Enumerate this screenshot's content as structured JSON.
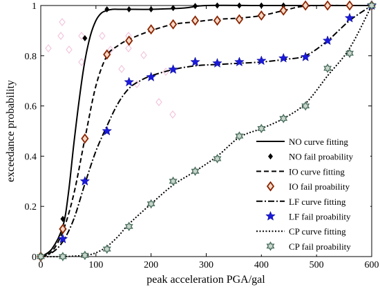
{
  "chart_data": {
    "type": "line",
    "xlabel": "peak acceleration PGA/gal",
    "ylabel": "exceedance probability",
    "xlim": [
      0,
      600
    ],
    "ylim": [
      0,
      1
    ],
    "x_ticks": [
      0,
      100,
      200,
      300,
      400,
      500,
      600
    ],
    "y_ticks": [
      0,
      0.2,
      0.4,
      0.6,
      0.8,
      1
    ],
    "x_tick_labels": [
      "0",
      "100",
      "200",
      "300",
      "400",
      "500",
      "600"
    ],
    "y_tick_labels": [
      "0",
      "0.2",
      "0.4",
      "0.6",
      "0.8",
      "1"
    ],
    "grid": false,
    "legend_position": "bottom-right",
    "series": [
      {
        "key": "NO",
        "curve_name": "NO curve fitting",
        "points_name": "NO fail proability",
        "curve_style": "solid",
        "marker": "filled-diamond",
        "marker_color": "#000000",
        "curve": {
          "x": [
            0,
            20,
            40,
            50,
            60,
            70,
            80,
            90,
            100,
            110,
            120,
            130,
            140,
            160,
            200,
            260,
            300,
            400,
            500,
            600
          ],
          "y": [
            0,
            0.03,
            0.12,
            0.25,
            0.45,
            0.63,
            0.78,
            0.88,
            0.94,
            0.97,
            0.98,
            0.985,
            0.985,
            0.985,
            0.985,
            0.99,
            1,
            1,
            1,
            1
          ]
        },
        "points": {
          "x": [
            0,
            40,
            80,
            120,
            160,
            200,
            240,
            280,
            320,
            360,
            400,
            440,
            480,
            520,
            560,
            600
          ],
          "y": [
            0,
            0.15,
            0.87,
            0.985,
            0.985,
            0.985,
            0.99,
            0.998,
            1,
            1,
            1,
            1,
            1,
            1,
            1,
            1
          ]
        }
      },
      {
        "key": "IO",
        "curve_name": "IO curve fitting",
        "points_name": "IO fail proability",
        "curve_style": "dashed",
        "marker": "open-diamond",
        "marker_color": "#8b2500",
        "curve": {
          "x": [
            0,
            20,
            40,
            60,
            80,
            100,
            120,
            140,
            160,
            200,
            240,
            280,
            320,
            360,
            400,
            440,
            470,
            500,
            560,
            600
          ],
          "y": [
            0,
            0.02,
            0.1,
            0.25,
            0.47,
            0.68,
            0.8,
            0.84,
            0.865,
            0.9,
            0.925,
            0.935,
            0.945,
            0.95,
            0.96,
            0.98,
            0.995,
            1,
            1,
            1
          ]
        },
        "points": {
          "x": [
            0,
            40,
            80,
            120,
            160,
            200,
            240,
            280,
            320,
            360,
            400,
            440,
            480,
            520,
            560,
            600
          ],
          "y": [
            0,
            0.11,
            0.47,
            0.805,
            0.86,
            0.905,
            0.925,
            0.94,
            0.94,
            0.945,
            0.96,
            0.98,
            1,
            1,
            1,
            1
          ]
        }
      },
      {
        "key": "LF",
        "curve_name": "LF curve fitting",
        "points_name": "LF fail proability",
        "curve_style": "dash-dot",
        "marker": "star",
        "marker_color": "#1a1adc",
        "curve": {
          "x": [
            0,
            20,
            40,
            60,
            80,
            100,
            120,
            140,
            160,
            180,
            200,
            240,
            280,
            320,
            360,
            400,
            440,
            480,
            520,
            560,
            600
          ],
          "y": [
            0,
            0.015,
            0.06,
            0.15,
            0.29,
            0.42,
            0.52,
            0.61,
            0.67,
            0.7,
            0.72,
            0.745,
            0.76,
            0.765,
            0.77,
            0.775,
            0.785,
            0.8,
            0.86,
            0.94,
            1
          ]
        },
        "points": {
          "x": [
            40,
            80,
            120,
            160,
            200,
            240,
            280,
            320,
            360,
            400,
            440,
            480,
            520,
            560,
            600
          ],
          "y": [
            0.07,
            0.3,
            0.5,
            0.695,
            0.715,
            0.745,
            0.775,
            0.77,
            0.775,
            0.78,
            0.79,
            0.795,
            0.86,
            0.95,
            1
          ]
        }
      },
      {
        "key": "CP",
        "curve_name": "CP curve fitting",
        "points_name": "CP fail proability",
        "curve_style": "dotted",
        "marker": "hexagram",
        "marker_color": "#4a6e5e",
        "curve": {
          "x": [
            0,
            40,
            80,
            100,
            120,
            140,
            160,
            200,
            240,
            280,
            320,
            360,
            400,
            440,
            480,
            520,
            560,
            600
          ],
          "y": [
            0,
            0,
            0.005,
            0.015,
            0.04,
            0.08,
            0.13,
            0.21,
            0.285,
            0.34,
            0.4,
            0.475,
            0.51,
            0.55,
            0.61,
            0.72,
            0.83,
            1
          ]
        },
        "points": {
          "x": [
            0,
            40,
            80,
            120,
            160,
            200,
            240,
            280,
            320,
            360,
            400,
            440,
            480,
            520,
            560,
            600
          ],
          "y": [
            0,
            0,
            0.005,
            0.03,
            0.12,
            0.21,
            0.3,
            0.34,
            0.39,
            0.48,
            0.51,
            0.55,
            0.6,
            0.75,
            0.81,
            1
          ]
        }
      }
    ]
  }
}
